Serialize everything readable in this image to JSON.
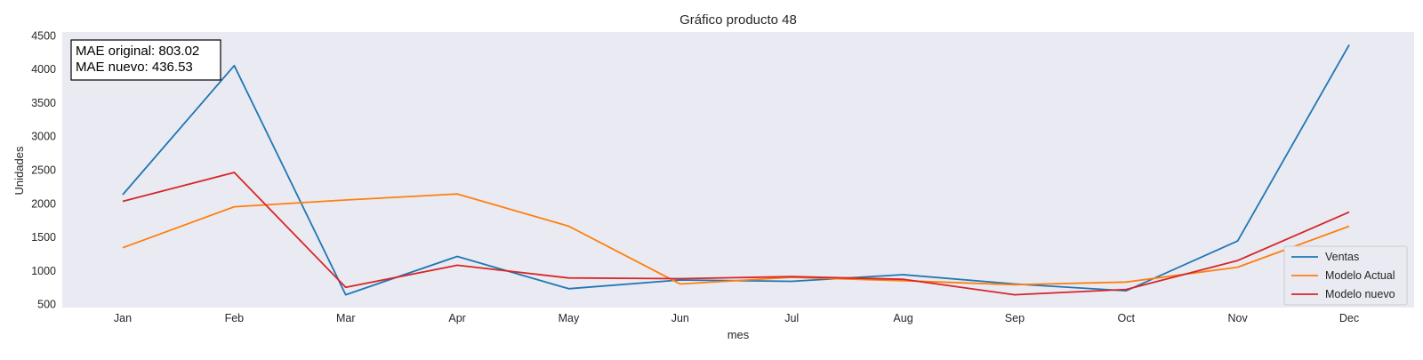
{
  "chart_data": {
    "type": "line",
    "title": "Gráfico producto 48",
    "xlabel": "mes",
    "ylabel": "Unidades",
    "categories": [
      "Jan",
      "Feb",
      "Mar",
      "Apr",
      "May",
      "Jun",
      "Jul",
      "Aug",
      "Sep",
      "Oct",
      "Nov",
      "Dec"
    ],
    "ylim": [
      450,
      4550
    ],
    "yticks": [
      500,
      1000,
      1500,
      2000,
      2500,
      3000,
      3500,
      4000,
      4500
    ],
    "grid": false,
    "legend_position": "bottom-right",
    "series": [
      {
        "name": "Ventas",
        "color": "#1f77b4",
        "values": [
          2130,
          4050,
          640,
          1210,
          730,
          860,
          840,
          940,
          800,
          700,
          1440,
          4360
        ]
      },
      {
        "name": "Modelo Actual",
        "color": "#ff7f0e",
        "values": [
          1340,
          1950,
          2050,
          2140,
          1660,
          800,
          900,
          850,
          790,
          830,
          1050,
          1660
        ]
      },
      {
        "name": "Modelo nuevo",
        "color": "#d62728",
        "values": [
          2030,
          2460,
          750,
          1080,
          890,
          880,
          910,
          870,
          640,
          720,
          1150,
          1870
        ]
      }
    ],
    "annotations": [
      "MAE original: 803.02",
      "MAE nuevo: 436.53"
    ],
    "background_color": "#eaeaf2"
  }
}
